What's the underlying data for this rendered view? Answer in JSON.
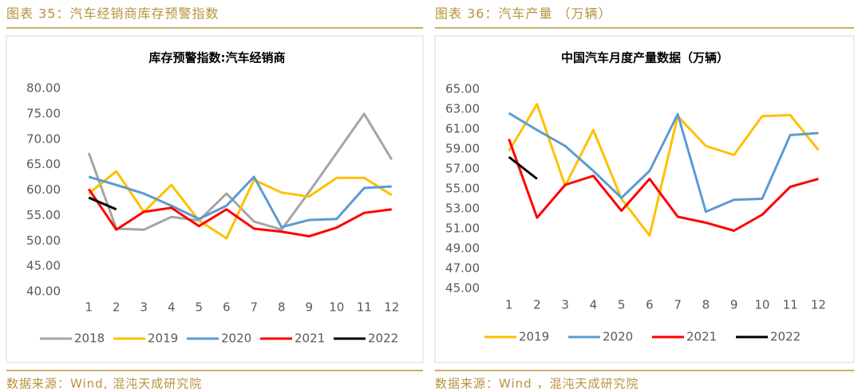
{
  "headers": [
    "图表 35：汽车经销商库存预警指数",
    "图表 36：汽车产量 （万辆）"
  ],
  "sources": [
    "数据来源：Wind, 混沌天成研究院",
    "数据来源：Wind ，混沌天成研究院"
  ],
  "chart_data": [
    {
      "type": "line",
      "title": "库存预警指数:汽车经销商",
      "categories": [
        "1",
        "2",
        "3",
        "4",
        "5",
        "6",
        "7",
        "8",
        "9",
        "10",
        "11",
        "12"
      ],
      "ylim": [
        40,
        80
      ],
      "yticks": [
        {
          "value": 40,
          "label": "40.00"
        },
        {
          "value": 45,
          "label": "45.00"
        },
        {
          "value": 50,
          "label": "50.00"
        },
        {
          "value": 55,
          "label": "55.00"
        },
        {
          "value": 60,
          "label": "60.00"
        },
        {
          "value": 65,
          "label": "65.00"
        },
        {
          "value": 70,
          "label": "70.00"
        },
        {
          "value": 75,
          "label": "75.00"
        },
        {
          "value": 80,
          "label": "80.00"
        }
      ],
      "legend": "bottom",
      "series": [
        {
          "name": "2018",
          "color": "#a5a5a5",
          "values": [
            67.3,
            52.4,
            52.2,
            54.7,
            54.0,
            59.3,
            53.8,
            52.2,
            59.6,
            67.3,
            75.0,
            66.0
          ]
        },
        {
          "name": "2019",
          "color": "#ffc000",
          "values": [
            59.3,
            63.7,
            55.7,
            61.0,
            54.0,
            50.5,
            62.0,
            59.5,
            58.7,
            62.4,
            62.4,
            59.0
          ]
        },
        {
          "name": "2020",
          "color": "#5b9bd5",
          "values": [
            62.6,
            61.0,
            59.3,
            56.9,
            54.3,
            56.9,
            62.6,
            52.7,
            54.1,
            54.3,
            60.4,
            60.7
          ]
        },
        {
          "name": "2021",
          "color": "#ff0000",
          "values": [
            60.2,
            52.2,
            55.7,
            56.5,
            52.9,
            56.2,
            52.4,
            51.8,
            50.9,
            52.6,
            55.5,
            56.2
          ]
        },
        {
          "name": "2022",
          "color": "#000000",
          "values": [
            58.5,
            56.2,
            null,
            null,
            null,
            null,
            null,
            null,
            null,
            null,
            null,
            null
          ]
        }
      ]
    },
    {
      "type": "line",
      "title": "中国汽车月度产量数据（万辆）",
      "categories": [
        "1",
        "2",
        "3",
        "4",
        "5",
        "6",
        "7",
        "8",
        "9",
        "10",
        "11",
        "12"
      ],
      "ylim": [
        45,
        65
      ],
      "yticks": [
        {
          "value": 45,
          "label": "45.00"
        },
        {
          "value": 47,
          "label": "47.00"
        },
        {
          "value": 49,
          "label": "49.00"
        },
        {
          "value": 51,
          "label": "51.00"
        },
        {
          "value": 53,
          "label": "53.00"
        },
        {
          "value": 55,
          "label": "55.00"
        },
        {
          "value": 57,
          "label": "57.00"
        },
        {
          "value": 59,
          "label": "59.00"
        },
        {
          "value": 61,
          "label": "61.00"
        },
        {
          "value": 63,
          "label": "63.00"
        },
        {
          "value": 65,
          "label": "65.00"
        }
      ],
      "legend": "bottom",
      "series": [
        {
          "name": "2019",
          "color": "#ffc000",
          "values": [
            58.8,
            63.5,
            55.3,
            60.9,
            54.0,
            50.3,
            62.3,
            59.3,
            58.4,
            62.3,
            62.4,
            58.9
          ]
        },
        {
          "name": "2020",
          "color": "#5b9bd5",
          "values": [
            62.6,
            60.9,
            59.3,
            56.8,
            54.1,
            56.8,
            62.5,
            52.7,
            53.9,
            54.0,
            60.4,
            60.6
          ]
        },
        {
          "name": "2021",
          "color": "#ff0000",
          "values": [
            60.0,
            52.1,
            55.4,
            56.3,
            52.8,
            56.0,
            52.2,
            51.6,
            50.8,
            52.4,
            55.2,
            56.0
          ]
        },
        {
          "name": "2022",
          "color": "#000000",
          "values": [
            58.2,
            56.0,
            null,
            null,
            null,
            null,
            null,
            null,
            null,
            null,
            null,
            null
          ]
        }
      ]
    }
  ]
}
